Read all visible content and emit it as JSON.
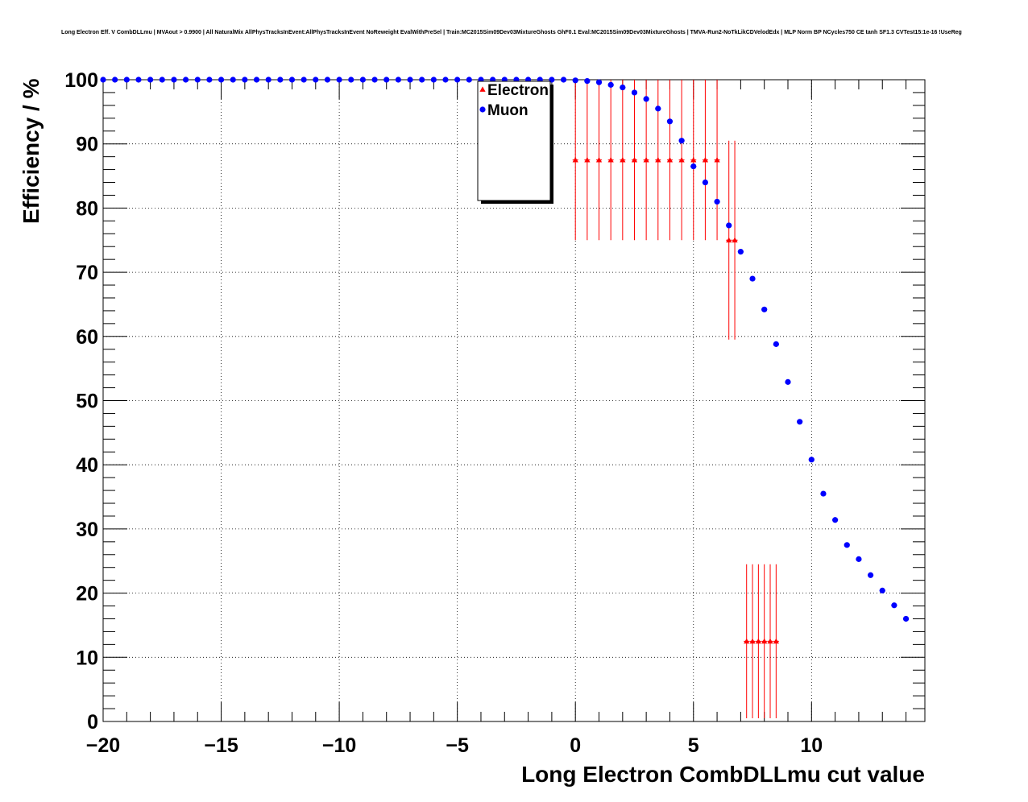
{
  "chart_data": {
    "type": "scatter",
    "title": "Long Electron Eff. V CombDLLmu | MVAout > 0.9900 | All NaturalMix AllPhysTracksInEvent:AllPhysTracksInEvent NoReweight EvalWithPreSel | Train:MC2015Sim09Dev03MixtureGhosts GhF0.1 Eval:MC2015Sim09Dev03MixtureGhosts | TMVA-Run2-NoTkLikCDVelodEdx | MLP Norm BP NCycles750 CE tanh SF1.3 CVTest15:1e-16 !UseReg",
    "xlabel": "Long Electron CombDLLmu cut value",
    "ylabel": "Efficiency / %",
    "xlim": [
      -20,
      14.8
    ],
    "ylim": [
      0,
      100
    ],
    "xticks": [
      -20,
      -15,
      -10,
      -5,
      0,
      5,
      10
    ],
    "xtick_labels": [
      "−20",
      "−15",
      "−10",
      "−5",
      "0",
      "5",
      "10"
    ],
    "yticks": [
      0,
      10,
      20,
      30,
      40,
      50,
      60,
      70,
      80,
      90,
      100
    ],
    "grid": true,
    "legend_position": "top-center",
    "series": [
      {
        "name": "Electron",
        "color": "#ff0000",
        "marker": "triangle-up",
        "points": [
          {
            "x": 0.0,
            "y": 87.5,
            "err": 12.5
          },
          {
            "x": 0.5,
            "y": 87.5,
            "err": 12.5
          },
          {
            "x": 1.0,
            "y": 87.5,
            "err": 12.5
          },
          {
            "x": 1.5,
            "y": 87.5,
            "err": 12.5
          },
          {
            "x": 2.0,
            "y": 87.5,
            "err": 12.5
          },
          {
            "x": 2.5,
            "y": 87.5,
            "err": 12.5
          },
          {
            "x": 3.0,
            "y": 87.5,
            "err": 12.5
          },
          {
            "x": 3.5,
            "y": 87.5,
            "err": 12.5
          },
          {
            "x": 4.0,
            "y": 87.5,
            "err": 12.5
          },
          {
            "x": 4.5,
            "y": 87.5,
            "err": 12.5
          },
          {
            "x": 5.0,
            "y": 87.5,
            "err": 12.5
          },
          {
            "x": 5.5,
            "y": 87.5,
            "err": 12.5
          },
          {
            "x": 6.0,
            "y": 87.5,
            "err": 12.5
          },
          {
            "x": 6.5,
            "y": 75.0,
            "err": 15.5
          },
          {
            "x": 6.75,
            "y": 75.0,
            "err": 15.5
          },
          {
            "x": 7.25,
            "y": 12.5,
            "err": 12.0
          },
          {
            "x": 7.5,
            "y": 12.5,
            "err": 12.0
          },
          {
            "x": 7.75,
            "y": 12.5,
            "err": 12.0
          },
          {
            "x": 8.0,
            "y": 12.5,
            "err": 12.0
          },
          {
            "x": 8.25,
            "y": 12.5,
            "err": 12.0
          },
          {
            "x": 8.5,
            "y": 12.5,
            "err": 12.0
          }
        ]
      },
      {
        "name": "Muon",
        "color": "#0000ff",
        "marker": "circle",
        "points": [
          {
            "x": -20.0,
            "y": 100
          },
          {
            "x": -19.5,
            "y": 100
          },
          {
            "x": -19.0,
            "y": 100
          },
          {
            "x": -18.5,
            "y": 100
          },
          {
            "x": -18.0,
            "y": 100
          },
          {
            "x": -17.5,
            "y": 100
          },
          {
            "x": -17.0,
            "y": 100
          },
          {
            "x": -16.5,
            "y": 100
          },
          {
            "x": -16.0,
            "y": 100
          },
          {
            "x": -15.5,
            "y": 100
          },
          {
            "x": -15.0,
            "y": 100
          },
          {
            "x": -14.5,
            "y": 100
          },
          {
            "x": -14.0,
            "y": 100
          },
          {
            "x": -13.5,
            "y": 100
          },
          {
            "x": -13.0,
            "y": 100
          },
          {
            "x": -12.5,
            "y": 100
          },
          {
            "x": -12.0,
            "y": 100
          },
          {
            "x": -11.5,
            "y": 100
          },
          {
            "x": -11.0,
            "y": 100
          },
          {
            "x": -10.5,
            "y": 100
          },
          {
            "x": -10.0,
            "y": 100
          },
          {
            "x": -9.5,
            "y": 100
          },
          {
            "x": -9.0,
            "y": 100
          },
          {
            "x": -8.5,
            "y": 100
          },
          {
            "x": -8.0,
            "y": 100
          },
          {
            "x": -7.5,
            "y": 100
          },
          {
            "x": -7.0,
            "y": 100
          },
          {
            "x": -6.5,
            "y": 100
          },
          {
            "x": -6.0,
            "y": 100
          },
          {
            "x": -5.5,
            "y": 100
          },
          {
            "x": -5.0,
            "y": 100
          },
          {
            "x": -4.5,
            "y": 100
          },
          {
            "x": -4.0,
            "y": 100
          },
          {
            "x": -3.5,
            "y": 100
          },
          {
            "x": -3.0,
            "y": 100
          },
          {
            "x": -2.5,
            "y": 100
          },
          {
            "x": -2.0,
            "y": 100
          },
          {
            "x": -1.5,
            "y": 100
          },
          {
            "x": -1.0,
            "y": 100
          },
          {
            "x": -0.5,
            "y": 100
          },
          {
            "x": 0.0,
            "y": 99.9
          },
          {
            "x": 0.5,
            "y": 99.8
          },
          {
            "x": 1.0,
            "y": 99.6
          },
          {
            "x": 1.5,
            "y": 99.2
          },
          {
            "x": 2.0,
            "y": 98.8
          },
          {
            "x": 2.5,
            "y": 98.0
          },
          {
            "x": 3.0,
            "y": 97.0
          },
          {
            "x": 3.5,
            "y": 95.5
          },
          {
            "x": 4.0,
            "y": 93.5
          },
          {
            "x": 4.5,
            "y": 90.5
          },
          {
            "x": 5.0,
            "y": 86.5
          },
          {
            "x": 5.5,
            "y": 84.0
          },
          {
            "x": 6.0,
            "y": 81.0
          },
          {
            "x": 6.5,
            "y": 77.3
          },
          {
            "x": 7.0,
            "y": 73.2
          },
          {
            "x": 7.5,
            "y": 69.0
          },
          {
            "x": 8.0,
            "y": 64.2
          },
          {
            "x": 8.5,
            "y": 58.8
          },
          {
            "x": 9.0,
            "y": 52.9
          },
          {
            "x": 9.5,
            "y": 46.7
          },
          {
            "x": 10.0,
            "y": 40.8
          },
          {
            "x": 10.5,
            "y": 35.5
          },
          {
            "x": 11.0,
            "y": 31.4
          },
          {
            "x": 11.5,
            "y": 27.5
          },
          {
            "x": 12.0,
            "y": 25.3
          },
          {
            "x": 12.5,
            "y": 22.8
          },
          {
            "x": 13.0,
            "y": 20.4
          },
          {
            "x": 13.5,
            "y": 18.1
          },
          {
            "x": 14.0,
            "y": 16.0
          }
        ]
      }
    ]
  }
}
